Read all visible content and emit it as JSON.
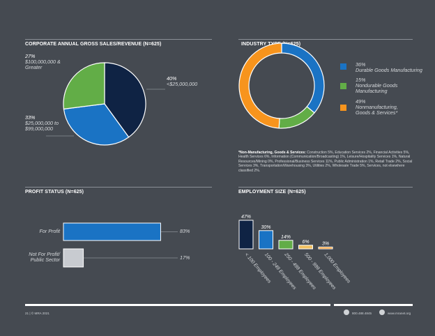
{
  "colors": {
    "background": "#454a51",
    "navy": "#0f2344",
    "blue": "#1a73c4",
    "green": "#62ad47",
    "orange": "#f7941d",
    "gray": "#c8cbd0",
    "yellow": "#f0c060"
  },
  "chart_data": [
    {
      "type": "pie",
      "title": "CORPORATE ANNUAL GROSS SALES/REVENUE (N=625)",
      "slices": [
        {
          "pct": "40%",
          "label": "<$25,000,000",
          "value": 40,
          "color": "#0f2344"
        },
        {
          "pct": "33%",
          "label": "$25,000,000 to $99,000,000",
          "value": 33,
          "color": "#1a73c4"
        },
        {
          "pct": "27%",
          "label": "$100,000,000 & Greater",
          "value": 27,
          "color": "#62ad47"
        }
      ]
    },
    {
      "type": "pie",
      "title": "INDUSTRY TYPE (N=625)",
      "slices": [
        {
          "pct": "36%",
          "label": "Durable Goods Manufacturing",
          "value": 36,
          "color": "#1a73c4"
        },
        {
          "pct": "15%",
          "label": "Nondurable Goods Manufacturing",
          "value": 15,
          "color": "#62ad47"
        },
        {
          "pct": "49%",
          "label": "Nonmanufacturing, Goods & Services*",
          "value": 49,
          "color": "#f7941d"
        }
      ],
      "footnote_heading": "*Non-Manufacturing, Goods & Services:",
      "footnote_text": "Construction 5%, Education Services 2%, Financial Activities 5%, Health Services 6%, Information (Communication/Broadcasting) 1%, Leisure/Hospitality Services 1%, Natural Resources/Mining 0%, Professional/Business Services 11%, Public Administration 1%, Retail Trade 2%, Social Services 3%, Transportation/Warehousing 3%, Utilities 2%, Wholesale Trade 5%, Services, not elsewhere classified 2%."
    },
    {
      "type": "bar",
      "title": "PROFIT STATUS (N=625)",
      "categories": [
        "For Profit",
        "Not For Profit/ Public Sector"
      ],
      "values": [
        83,
        17
      ],
      "value_labels": [
        "83%",
        "17%"
      ],
      "colors": [
        "#1a73c4",
        "#c8cbd0"
      ],
      "ylim": [
        0,
        100
      ]
    },
    {
      "type": "bar",
      "title": "EMPLOYMENT SIZE (N=625)",
      "categories": [
        "< 100 Employees",
        "100 - 249 Employees",
        "250 - 499 Employees",
        "500 - 999 Employees",
        "1,000 Employees"
      ],
      "values": [
        47,
        30,
        14,
        6,
        3
      ],
      "value_labels": [
        "47%",
        "30%",
        "14%",
        "6%",
        "3%"
      ],
      "colors": [
        "#0f2344",
        "#1a73c4",
        "#62ad47",
        "#f0c060",
        "#f7941d"
      ],
      "ylim": [
        0,
        47
      ]
    }
  ],
  "footer": {
    "page_info": "21 | © MRA 2021",
    "phone": "800.488.4845",
    "website": "www.mranet.org"
  }
}
